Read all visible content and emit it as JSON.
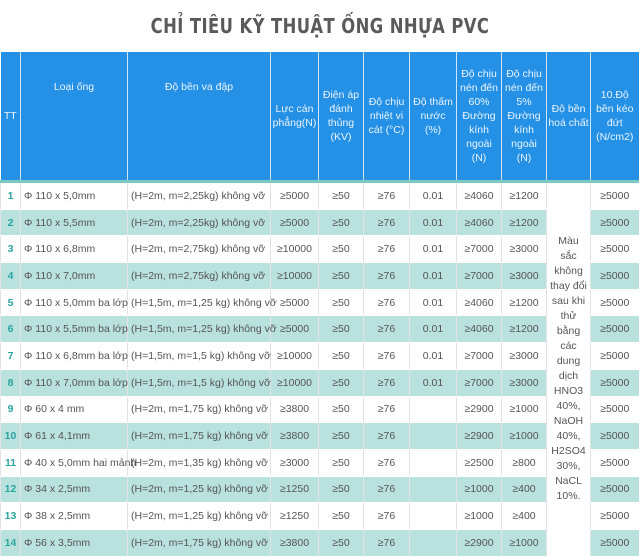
{
  "title": "CHỈ TIÊU KỸ THUẬT ỐNG NHỰA PVC",
  "colors": {
    "header_bg": "#2490e6",
    "alt_row": "#b9e1de",
    "row_number": "#2aa5a0",
    "title": "#5a5a5a"
  },
  "headers": [
    "TT",
    "Loại ống",
    "Độ bền va đập",
    "Lực cán phẳng(N)",
    "Điện áp đánh thủng (KV)",
    "Độ chịu nhiệt vi cát (°C)",
    "Độ thấm nước (%)",
    "Độ chịu nén đến 60% Đường kính ngoài (N)",
    "Độ chịu nén đến 5% Đường kính ngoài (N)",
    "Độ bền hoá chất",
    "10.Độ bền kéo đứt (N/cm2)"
  ],
  "chemical_resistance": "Màu sắc không thay đổi sau khi thử bằng các dung dịch HNO3 40%, NaOH 40%, H2SO4 30%, NaCL 10%.",
  "rows": [
    [
      "1",
      "Φ 110 x 5,0mm",
      "(H=2m, m=2,25kg) không vỡ",
      "≥5000",
      "≥50",
      "≥76",
      "0.01",
      "≥4060",
      "≥1200",
      "≥5000"
    ],
    [
      "2",
      "Φ 110 x 5,5mm",
      "(H=2m, m=2,25kg) không vỡ",
      "≥5000",
      "≥50",
      "≥76",
      "0.01",
      "≥4060",
      "≥1200",
      "≥5000"
    ],
    [
      "3",
      "Φ 110 x 6,8mm",
      "(H=2m, m=2,75kg) không vỡ",
      "≥10000",
      "≥50",
      "≥76",
      "0.01",
      "≥7000",
      "≥3000",
      "≥5000"
    ],
    [
      "4",
      "Φ 110 x 7,0mm",
      "(H=2m, m=2,75kg) không vỡ",
      "≥10000",
      "≥50",
      "≥76",
      "0.01",
      "≥7000",
      "≥3000",
      "≥5000"
    ],
    [
      "5",
      "Φ 110 x 5,0mm ba lớp",
      "(H=1,5m, m=1,25 kg) không vỡ",
      "≥5000",
      "≥50",
      "≥76",
      "0.01",
      "≥4060",
      "≥1200",
      "≥5000"
    ],
    [
      "6",
      "Φ 110 x 5,5mm ba lớp",
      "(H=1,5m, m=1,25 kg) không vỡ",
      "≥5000",
      "≥50",
      "≥76",
      "0.01",
      "≥4060",
      "≥1200",
      "≥5000"
    ],
    [
      "7",
      "Φ 110 x 6,8mm ba lớp",
      "(H=1,5m, m=1,5 kg) không vỡ",
      "≥10000",
      "≥50",
      "≥76",
      "0.01",
      "≥7000",
      "≥3000",
      "≥5000"
    ],
    [
      "8",
      "Φ 110 x 7,0mm ba lớp",
      "(H=1,5m, m=1,5 kg) không vỡ",
      "≥10000",
      "≥50",
      "≥76",
      "0.01",
      "≥7000",
      "≥3000",
      "≥5000"
    ],
    [
      "9",
      "Φ 60 x 4 mm",
      "(H=2m, m=1,75 kg) không vỡ",
      "≥3800",
      "≥50",
      "≥76",
      "",
      "≥2900",
      "≥1000",
      "≥5000"
    ],
    [
      "10",
      "Φ 61 x 4,1mm",
      "(H=2m, m=1,75 kg) không vỡ",
      "≥3800",
      "≥50",
      "≥76",
      "",
      "≥2900",
      "≥1000",
      "≥5000"
    ],
    [
      "11",
      "Φ 40 x 5,0mm hai mảnh",
      "(H=2m, m=1,35 kg) không vỡ",
      "≥3000",
      "≥50",
      "≥76",
      "",
      "≥2500",
      "≥800",
      "≥5000"
    ],
    [
      "12",
      "Φ 34 x 2,5mm",
      "(H=2m, m=1,25 kg) không vỡ",
      "≥1250",
      "≥50",
      "≥76",
      "",
      "≥1000",
      "≥400",
      "≥5000"
    ],
    [
      "13",
      "Φ 38 x 2,5mm",
      "(H=2m, m=1,25 kg) không vỡ",
      "≥1250",
      "≥50",
      "≥76",
      "",
      "≥1000",
      "≥400",
      "≥5000"
    ],
    [
      "14",
      "Φ 56 x 3,5mm",
      "(H=2m, m=1,75 kg) không vỡ",
      "≥3800",
      "≥50",
      "≥76",
      "",
      "≥2900",
      "≥1000",
      "≥5000"
    ]
  ]
}
